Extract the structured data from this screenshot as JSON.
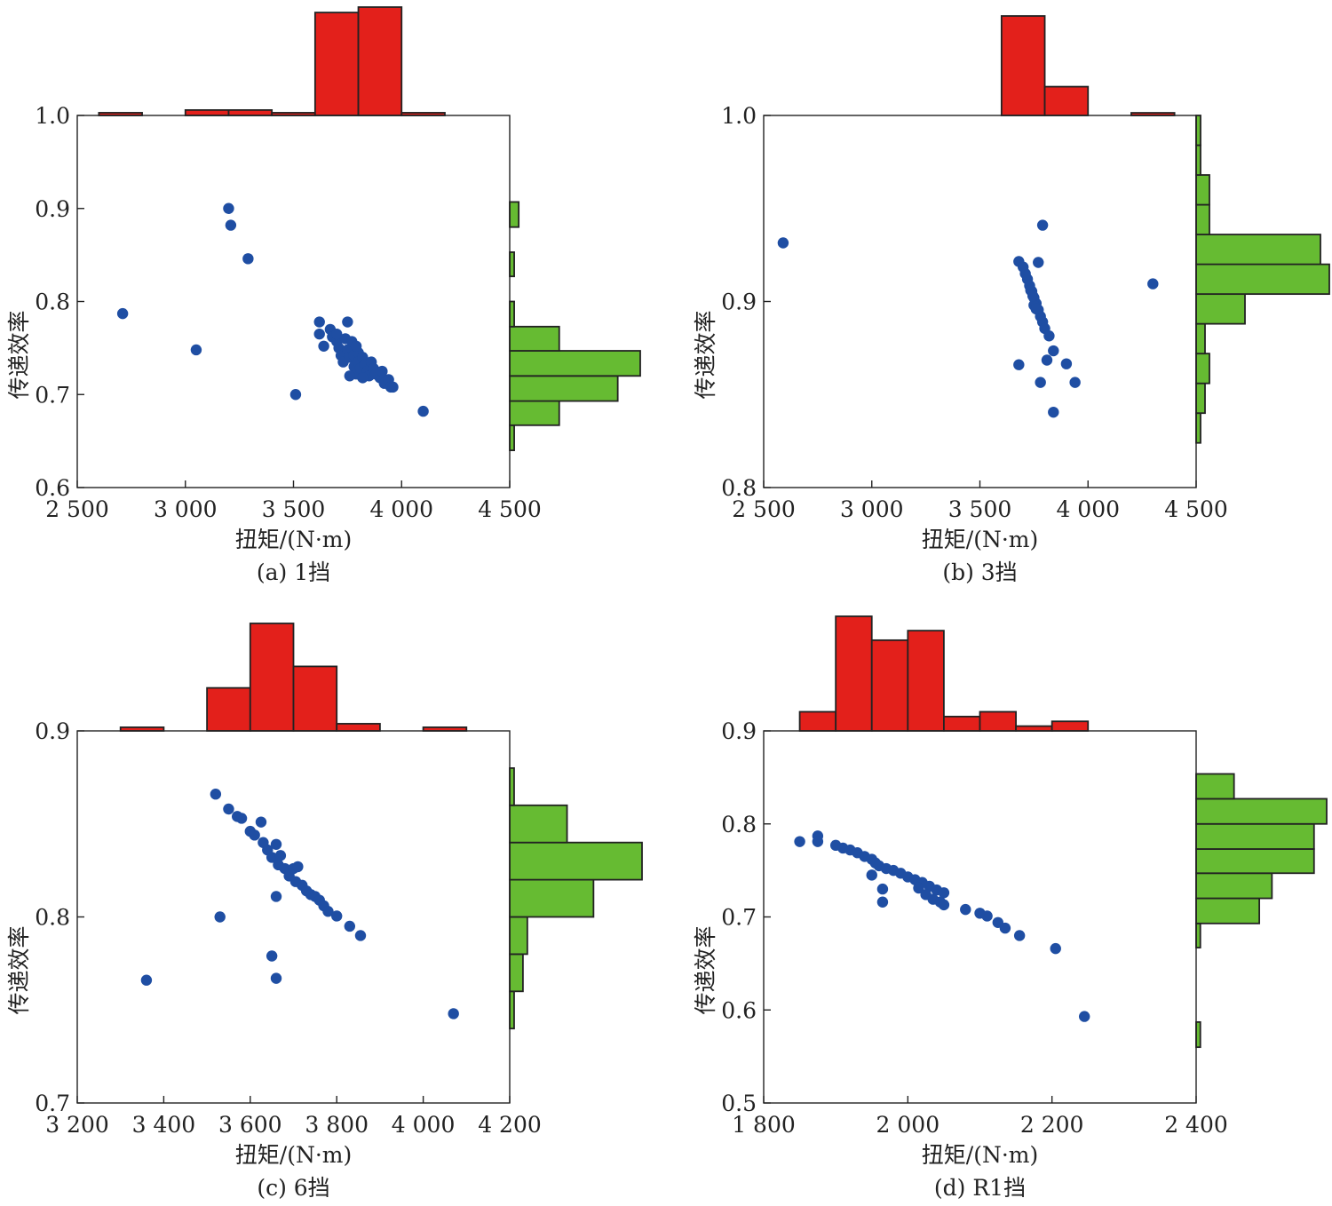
{
  "figure": {
    "colors": {
      "top_hist": "#e3201b",
      "right_hist": "#66bb32",
      "points": "#1f4ea3"
    }
  },
  "chart_data": [
    {
      "type": "scatter",
      "caption": "(a) 1挡",
      "xlabel": "扭矩/(N·m)",
      "ylabel": "传递效率",
      "xlim": [
        2500,
        4500
      ],
      "ylim": [
        0.6,
        1.0
      ],
      "x_ticks": [
        2500,
        3000,
        3500,
        4000,
        4500
      ],
      "x_tick_labels": [
        "2 500",
        "3 000",
        "3 500",
        "4 000",
        "4 500"
      ],
      "y_ticks": [
        0.6,
        0.7,
        0.8,
        0.9,
        1.0
      ],
      "y_tick_labels": [
        "0.6",
        "0.7",
        "0.8",
        "0.9",
        "1.0"
      ],
      "points": [
        [
          3200,
          0.9
        ],
        [
          3210,
          0.882
        ],
        [
          3290,
          0.846
        ],
        [
          2710,
          0.787
        ],
        [
          3050,
          0.748
        ],
        [
          3510,
          0.7
        ],
        [
          4100,
          0.682
        ],
        [
          3620,
          0.778
        ],
        [
          3620,
          0.765
        ],
        [
          3640,
          0.752
        ],
        [
          3670,
          0.77
        ],
        [
          3680,
          0.762
        ],
        [
          3700,
          0.757
        ],
        [
          3710,
          0.75
        ],
        [
          3720,
          0.742
        ],
        [
          3730,
          0.735
        ],
        [
          3740,
          0.76
        ],
        [
          3750,
          0.778
        ],
        [
          3750,
          0.748
        ],
        [
          3760,
          0.74
        ],
        [
          3770,
          0.757
        ],
        [
          3780,
          0.742
        ],
        [
          3780,
          0.73
        ],
        [
          3790,
          0.722
        ],
        [
          3800,
          0.745
        ],
        [
          3800,
          0.735
        ],
        [
          3810,
          0.728
        ],
        [
          3820,
          0.74
        ],
        [
          3830,
          0.732
        ],
        [
          3840,
          0.725
        ],
        [
          3850,
          0.72
        ],
        [
          3860,
          0.735
        ],
        [
          3870,
          0.728
        ],
        [
          3880,
          0.722
        ],
        [
          3900,
          0.718
        ],
        [
          3910,
          0.725
        ],
        [
          3920,
          0.712
        ],
        [
          3940,
          0.716
        ],
        [
          3950,
          0.708
        ],
        [
          3960,
          0.708
        ],
        [
          3760,
          0.72
        ],
        [
          3790,
          0.752
        ],
        [
          3820,
          0.718
        ],
        [
          3700,
          0.765
        ]
      ],
      "top_hist": {
        "bins": [
          [
            2600,
            2800
          ],
          [
            2800,
            3000
          ],
          [
            3000,
            3200
          ],
          [
            3200,
            3400
          ],
          [
            3400,
            3600
          ],
          [
            3600,
            3800
          ],
          [
            3800,
            4000
          ],
          [
            4000,
            4200
          ]
        ],
        "counts": [
          1,
          0,
          2,
          2,
          1,
          38,
          40,
          1
        ]
      },
      "right_hist": {
        "bins": [
          [
            0.64,
            0.667
          ],
          [
            0.667,
            0.693
          ],
          [
            0.693,
            0.72
          ],
          [
            0.72,
            0.747
          ],
          [
            0.747,
            0.773
          ],
          [
            0.773,
            0.8
          ],
          [
            0.827,
            0.853
          ],
          [
            0.88,
            0.907
          ]
        ],
        "counts": [
          1,
          11,
          24,
          29,
          11,
          1,
          1,
          2
        ]
      }
    },
    {
      "type": "scatter",
      "caption": "(b) 3挡",
      "xlabel": "扭矩/(N·m)",
      "ylabel": "传递效率",
      "xlim": [
        2500,
        4500
      ],
      "ylim": [
        0.8,
        1.0
      ],
      "x_ticks": [
        2500,
        3000,
        3500,
        4000,
        4500
      ],
      "x_tick_labels": [
        "2 500",
        "3 000",
        "3 500",
        "4 000",
        "4 500"
      ],
      "y_ticks": [
        0.8,
        0.9,
        1.0
      ],
      "y_tick_labels": [
        "0.8",
        "0.9",
        "1.0"
      ],
      "points": [
        [
          2590,
          0.9315
        ],
        [
          4300,
          0.9095
        ],
        [
          3790,
          0.941
        ],
        [
          3680,
          0.9215
        ],
        [
          3700,
          0.9185
        ],
        [
          3710,
          0.915
        ],
        [
          3720,
          0.912
        ],
        [
          3730,
          0.9085
        ],
        [
          3740,
          0.9055
        ],
        [
          3750,
          0.902
        ],
        [
          3760,
          0.899
        ],
        [
          3770,
          0.8955
        ],
        [
          3780,
          0.892
        ],
        [
          3790,
          0.889
        ],
        [
          3800,
          0.8855
        ],
        [
          3820,
          0.8815
        ],
        [
          3840,
          0.8735
        ],
        [
          3770,
          0.921
        ],
        [
          3680,
          0.866
        ],
        [
          3810,
          0.8685
        ],
        [
          3780,
          0.8565
        ],
        [
          3900,
          0.8665
        ],
        [
          3940,
          0.8565
        ],
        [
          3840,
          0.8405
        ],
        [
          3750,
          0.898
        ],
        [
          3760,
          0.896
        ],
        [
          3735,
          0.906
        ],
        [
          3745,
          0.903
        ]
      ],
      "top_hist": {
        "bins": [
          [
            3600,
            3800
          ],
          [
            3800,
            4000
          ],
          [
            4200,
            4400
          ]
        ],
        "counts": [
          38,
          11,
          1
        ]
      },
      "right_hist": {
        "bins": [
          [
            0.824,
            0.84
          ],
          [
            0.84,
            0.856
          ],
          [
            0.856,
            0.872
          ],
          [
            0.872,
            0.888
          ],
          [
            0.888,
            0.904
          ],
          [
            0.904,
            0.92
          ],
          [
            0.92,
            0.936
          ],
          [
            0.936,
            0.952
          ],
          [
            0.952,
            0.968
          ],
          [
            0.968,
            0.984
          ],
          [
            0.984,
            1.0
          ]
        ],
        "counts": [
          1,
          2,
          3,
          2,
          11,
          30,
          28,
          3,
          3,
          1,
          1
        ]
      }
    },
    {
      "type": "scatter",
      "caption": "(c) 6挡",
      "xlabel": "扭矩/(N·m)",
      "ylabel": "传递效率",
      "xlim": [
        3200,
        4200
      ],
      "ylim": [
        0.7,
        0.9
      ],
      "x_ticks": [
        3200,
        3400,
        3600,
        3800,
        4000,
        4200
      ],
      "x_tick_labels": [
        "3 200",
        "3 400",
        "3 600",
        "3 800",
        "4 000",
        "4 200"
      ],
      "y_ticks": [
        0.7,
        0.8,
        0.9
      ],
      "y_tick_labels": [
        "0.7",
        "0.8",
        "0.9"
      ],
      "points": [
        [
          3520,
          0.866
        ],
        [
          3550,
          0.858
        ],
        [
          3570,
          0.854
        ],
        [
          3580,
          0.853
        ],
        [
          3600,
          0.846
        ],
        [
          3610,
          0.844
        ],
        [
          3625,
          0.851
        ],
        [
          3630,
          0.84
        ],
        [
          3640,
          0.836
        ],
        [
          3650,
          0.832
        ],
        [
          3660,
          0.839
        ],
        [
          3665,
          0.828
        ],
        [
          3670,
          0.833
        ],
        [
          3680,
          0.826
        ],
        [
          3690,
          0.822
        ],
        [
          3700,
          0.826
        ],
        [
          3705,
          0.819
        ],
        [
          3710,
          0.827
        ],
        [
          3720,
          0.817
        ],
        [
          3730,
          0.814
        ],
        [
          3740,
          0.812
        ],
        [
          3750,
          0.811
        ],
        [
          3760,
          0.809
        ],
        [
          3770,
          0.806
        ],
        [
          3780,
          0.803
        ],
        [
          3800,
          0.8005
        ],
        [
          3830,
          0.795
        ],
        [
          3855,
          0.79
        ],
        [
          3530,
          0.8
        ],
        [
          3360,
          0.766
        ],
        [
          3650,
          0.779
        ],
        [
          3660,
          0.767
        ],
        [
          3660,
          0.811
        ],
        [
          4070,
          0.748
        ]
      ],
      "top_hist": {
        "bins": [
          [
            3300,
            3400
          ],
          [
            3500,
            3600
          ],
          [
            3600,
            3700
          ],
          [
            3700,
            3800
          ],
          [
            3800,
            3900
          ],
          [
            4000,
            4100
          ]
        ],
        "counts": [
          1,
          12,
          30,
          18,
          2,
          1
        ]
      },
      "right_hist": {
        "bins": [
          [
            0.74,
            0.76
          ],
          [
            0.76,
            0.78
          ],
          [
            0.78,
            0.8
          ],
          [
            0.8,
            0.82
          ],
          [
            0.82,
            0.84
          ],
          [
            0.84,
            0.86
          ],
          [
            0.86,
            0.88
          ]
        ],
        "counts": [
          1,
          3,
          4,
          19,
          30,
          13,
          1
        ]
      }
    },
    {
      "type": "scatter",
      "caption": "(d) R1挡",
      "xlabel": "扭矩/(N·m)",
      "ylabel": "传递效率",
      "xlim": [
        1800,
        2400
      ],
      "ylim": [
        0.5,
        0.9
      ],
      "x_ticks": [
        1800,
        2000,
        2200,
        2400
      ],
      "x_tick_labels": [
        "1 800",
        "2 000",
        "2 200",
        "2 400"
      ],
      "y_ticks": [
        0.5,
        0.6,
        0.7,
        0.8,
        0.9
      ],
      "y_tick_labels": [
        "0.5",
        "0.6",
        "0.7",
        "0.8",
        "0.9"
      ],
      "points": [
        [
          1850,
          0.781
        ],
        [
          1875,
          0.787
        ],
        [
          1875,
          0.781
        ],
        [
          1900,
          0.777
        ],
        [
          1910,
          0.774
        ],
        [
          1920,
          0.772
        ],
        [
          1930,
          0.769
        ],
        [
          1940,
          0.765
        ],
        [
          1950,
          0.762
        ],
        [
          1955,
          0.758
        ],
        [
          1960,
          0.755
        ],
        [
          1970,
          0.752
        ],
        [
          1980,
          0.75
        ],
        [
          1990,
          0.747
        ],
        [
          2000,
          0.743
        ],
        [
          2010,
          0.74
        ],
        [
          2020,
          0.737
        ],
        [
          2030,
          0.733
        ],
        [
          2040,
          0.729
        ],
        [
          2050,
          0.726
        ],
        [
          2015,
          0.731
        ],
        [
          2025,
          0.724
        ],
        [
          2035,
          0.719
        ],
        [
          2045,
          0.716
        ],
        [
          2050,
          0.713
        ],
        [
          1950,
          0.745
        ],
        [
          1965,
          0.73
        ],
        [
          1965,
          0.716
        ],
        [
          2080,
          0.708
        ],
        [
          2100,
          0.704
        ],
        [
          2110,
          0.701
        ],
        [
          2125,
          0.694
        ],
        [
          2135,
          0.688
        ],
        [
          2155,
          0.68
        ],
        [
          2205,
          0.666
        ],
        [
          2245,
          0.593
        ]
      ],
      "top_hist": {
        "bins": [
          [
            1850,
            1900
          ],
          [
            1900,
            1950
          ],
          [
            1950,
            2000
          ],
          [
            2000,
            2050
          ],
          [
            2050,
            2100
          ],
          [
            2100,
            2150
          ],
          [
            2150,
            2200
          ],
          [
            2200,
            2250
          ]
        ],
        "counts": [
          2,
          12,
          9.5,
          10.5,
          1.5,
          2,
          0.5,
          1
        ]
      },
      "right_hist": {
        "bins": [
          [
            0.56,
            0.587
          ],
          [
            0.667,
            0.693
          ],
          [
            0.693,
            0.72
          ],
          [
            0.72,
            0.747
          ],
          [
            0.747,
            0.773
          ],
          [
            0.773,
            0.8
          ],
          [
            0.8,
            0.827
          ]
        ],
        "counts": [
          1,
          1,
          15,
          18,
          28,
          28,
          31
        ],
        "top_extra": {
          "bin": [
            0.8,
            0.827
          ],
          "count": 9
        }
      }
    }
  ]
}
